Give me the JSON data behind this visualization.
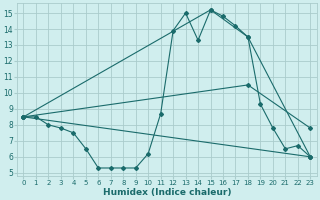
{
  "background_color": "#d0eeee",
  "grid_color": "#aacccc",
  "line_color": "#1a6b6b",
  "xlabel": "Humidex (Indice chaleur)",
  "xlim": [
    -0.5,
    23.5
  ],
  "ylim": [
    4.8,
    15.6
  ],
  "yticks": [
    5,
    6,
    7,
    8,
    9,
    10,
    11,
    12,
    13,
    14,
    15
  ],
  "xticks": [
    0,
    1,
    2,
    3,
    4,
    5,
    6,
    7,
    8,
    9,
    10,
    11,
    12,
    13,
    14,
    15,
    16,
    17,
    18,
    19,
    20,
    21,
    22,
    23
  ],
  "series": [
    {
      "x": [
        0,
        1,
        2,
        3,
        4,
        5,
        6,
        7,
        8,
        9,
        10,
        11,
        12,
        13,
        14,
        15,
        16,
        17,
        18,
        19,
        20,
        21,
        22,
        23
      ],
      "y": [
        8.5,
        8.5,
        8.0,
        7.8,
        7.5,
        6.5,
        5.3,
        5.3,
        5.3,
        5.3,
        6.2,
        8.7,
        13.9,
        15.0,
        13.3,
        15.2,
        14.8,
        14.2,
        13.5,
        9.3,
        7.8,
        6.5,
        6.7,
        6.0
      ]
    },
    {
      "x": [
        0,
        23
      ],
      "y": [
        8.5,
        6.0
      ]
    },
    {
      "x": [
        0,
        18,
        23
      ],
      "y": [
        8.5,
        10.5,
        7.8
      ]
    },
    {
      "x": [
        0,
        15,
        18,
        23
      ],
      "y": [
        8.5,
        15.2,
        13.5,
        6.0
      ]
    }
  ]
}
